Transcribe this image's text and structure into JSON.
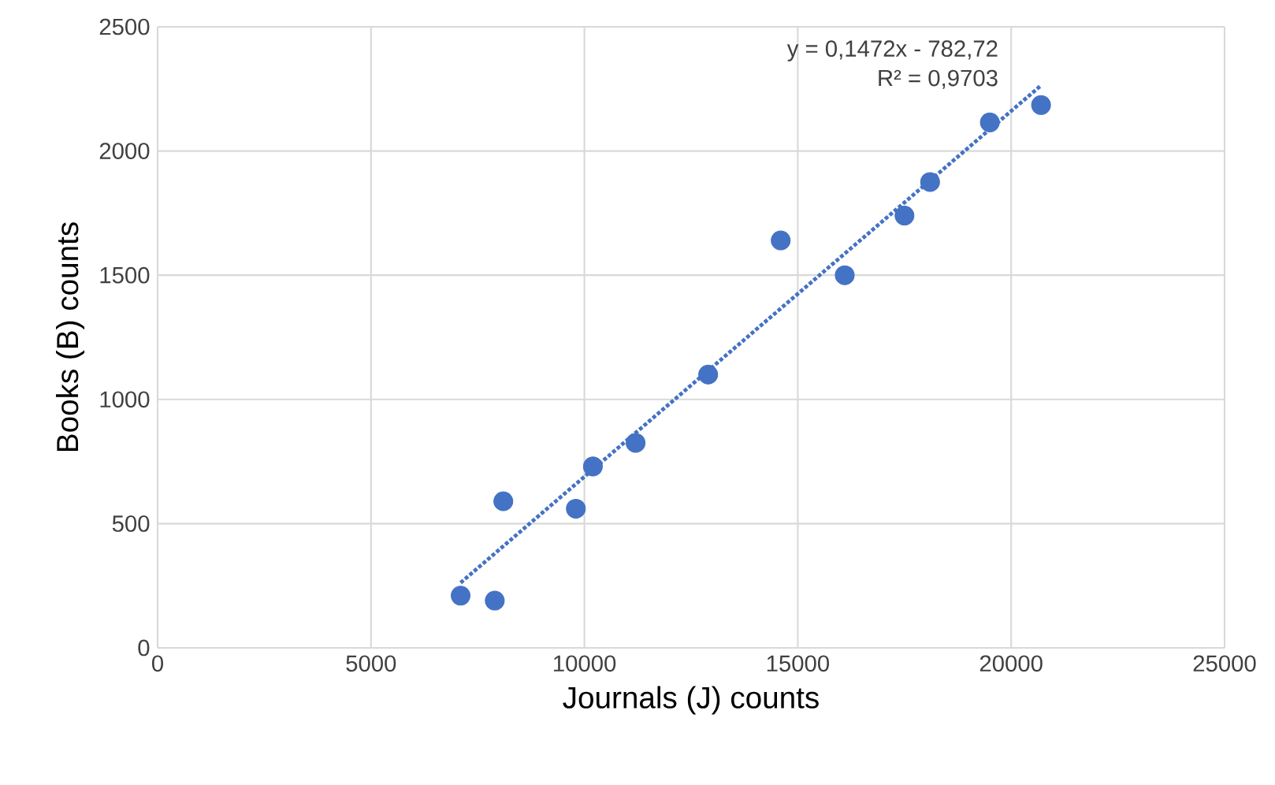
{
  "chart_data": {
    "type": "scatter",
    "xlabel": "Journals (J) counts",
    "ylabel": "Books (B) counts",
    "x": [
      7100,
      7900,
      8100,
      9800,
      10200,
      11200,
      12900,
      14600,
      16100,
      17500,
      18100,
      19500,
      20700
    ],
    "series": [
      {
        "color": "#4472c4",
        "marker": "circle",
        "values": [
          210,
          190,
          590,
          560,
          730,
          825,
          1100,
          1640,
          1500,
          1740,
          1875,
          2115,
          2185
        ]
      },
      {
        "type": "line",
        "color": "#4472c4",
        "marker": "none",
        "line_style": "dotted",
        "x": [
          7100,
          20700
        ],
        "values": [
          262,
          2264
        ]
      }
    ],
    "annotations": [
      "y = 0,1472x - 782,72",
      "R² = 0,9703"
    ],
    "xlim": [
      0,
      25000
    ],
    "xticks": [
      0,
      5000,
      10000,
      15000,
      20000,
      25000
    ],
    "ylim": [
      0,
      2500
    ],
    "yticks": [
      0,
      500,
      1000,
      1500,
      2000,
      2500
    ],
    "grid": true
  }
}
